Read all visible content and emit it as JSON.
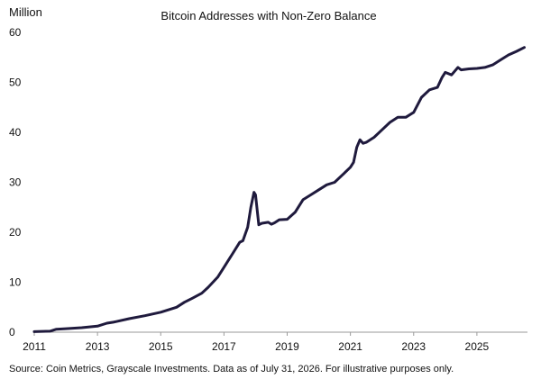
{
  "chart_data": {
    "type": "line",
    "title": "Bitcoin Addresses with Non-Zero Balance",
    "ylabel": "Million",
    "xlabel": "",
    "xlim": [
      2011,
      2026.6
    ],
    "ylim": [
      0,
      60
    ],
    "x_ticks": [
      2011,
      2013,
      2015,
      2017,
      2019,
      2021,
      2023,
      2025
    ],
    "x_tick_labels": [
      "2011",
      "2013",
      "2015",
      "2017",
      "2019",
      "2021",
      "2023",
      "2025"
    ],
    "y_ticks": [
      0,
      10,
      20,
      30,
      40,
      50,
      60
    ],
    "y_tick_labels": [
      "0",
      "10",
      "20",
      "30",
      "40",
      "50",
      "60"
    ],
    "grid": false,
    "legend": "none",
    "line_color": "#1f1a3d",
    "series": [
      {
        "x": [
          2011.0,
          2011.5,
          2011.7,
          2012.0,
          2012.5,
          2013.0,
          2013.3,
          2013.5,
          2014.0,
          2014.5,
          2015.0,
          2015.5,
          2015.75,
          2016.0,
          2016.3,
          2016.5,
          2016.8,
          2017.0,
          2017.25,
          2017.5,
          2017.6,
          2017.75,
          2017.85,
          2017.95,
          2018.0,
          2018.1,
          2018.2,
          2018.4,
          2018.5,
          2018.6,
          2018.75,
          2019.0,
          2019.25,
          2019.5,
          2019.75,
          2020.0,
          2020.25,
          2020.5,
          2020.75,
          2021.0,
          2021.1,
          2021.2,
          2021.3,
          2021.4,
          2021.5,
          2021.75,
          2022.0,
          2022.25,
          2022.5,
          2022.75,
          2023.0,
          2023.25,
          2023.5,
          2023.75,
          2023.9,
          2024.0,
          2024.2,
          2024.4,
          2024.5,
          2024.75,
          2025.0,
          2025.25,
          2025.5,
          2025.75,
          2026.0,
          2026.25,
          2026.5
        ],
        "y": [
          0.1,
          0.2,
          0.6,
          0.7,
          0.9,
          1.2,
          1.8,
          2.0,
          2.7,
          3.3,
          4.0,
          5.0,
          6.0,
          6.8,
          7.8,
          9.0,
          11.0,
          13.0,
          15.5,
          18.0,
          18.3,
          21.0,
          25.0,
          28.0,
          27.5,
          21.5,
          21.8,
          22.0,
          21.6,
          21.9,
          22.5,
          22.6,
          24.0,
          26.5,
          27.5,
          28.5,
          29.5,
          30.0,
          31.5,
          33.0,
          34.0,
          37.0,
          38.5,
          37.8,
          38.0,
          39.0,
          40.5,
          42.0,
          43.0,
          43.0,
          44.0,
          47.0,
          48.5,
          49.0,
          51.0,
          52.0,
          51.5,
          53.0,
          52.5,
          52.7,
          52.8,
          53.0,
          53.5,
          54.5,
          55.5,
          56.2,
          57.0
        ]
      }
    ]
  },
  "source_note": "Source: Coin Metrics, Grayscale Investments. Data as of July 31, 2026. For illustrative purposes only."
}
